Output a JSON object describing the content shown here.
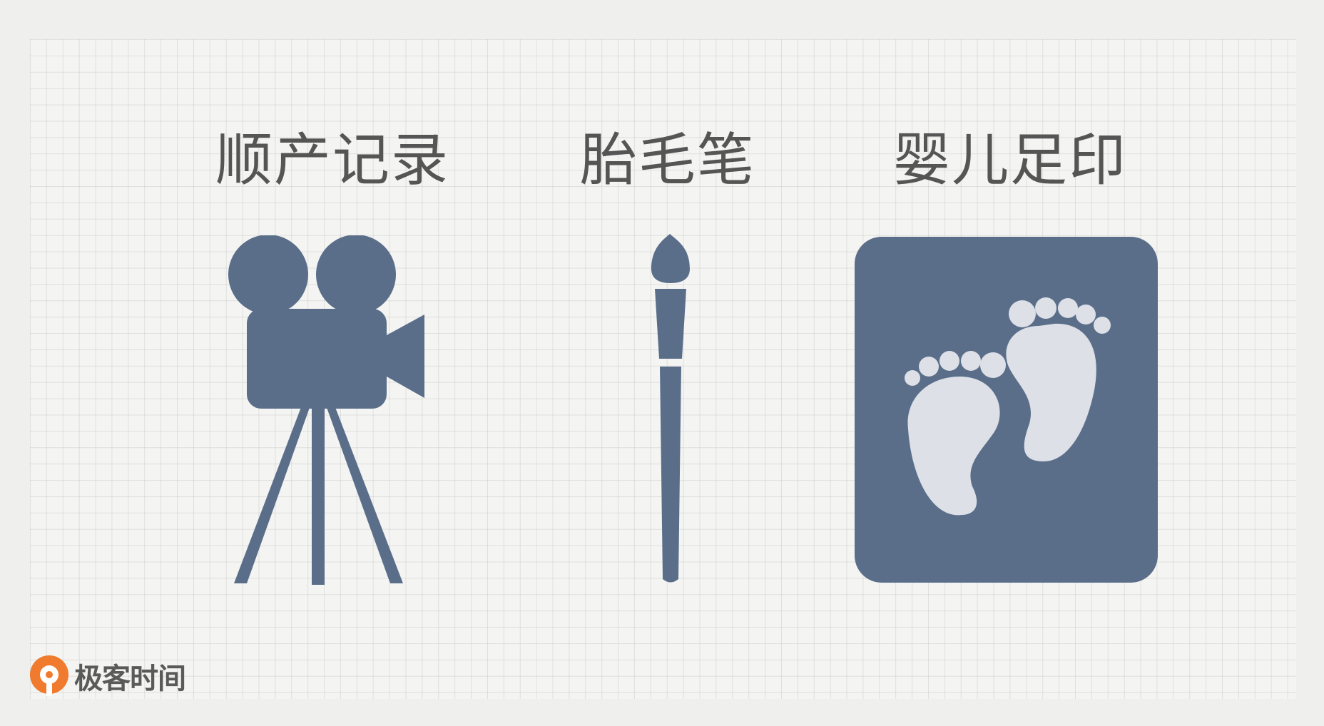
{
  "items": [
    {
      "title": "顺产记录",
      "icon": "movie-camera-icon"
    },
    {
      "title": "胎毛笔",
      "icon": "paintbrush-icon"
    },
    {
      "title": "婴儿足印",
      "icon": "baby-footprints-icon"
    }
  ],
  "brand": {
    "name": "极客时间",
    "logo_color": "#f07a2d"
  },
  "colors": {
    "icon": "#5a6e8a",
    "footprint": "#dde0e6",
    "text": "#555555"
  }
}
